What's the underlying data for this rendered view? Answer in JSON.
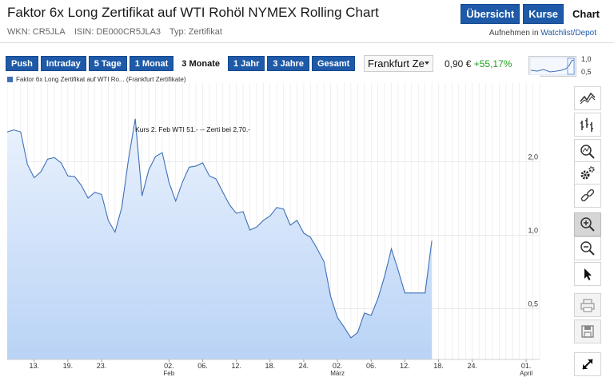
{
  "header": {
    "title": "Faktor 6x Long Zertifikat auf WTI Rohöl NYMEX Rolling Chart",
    "nav": [
      "Übersicht",
      "Kurse",
      "Chart"
    ],
    "active_nav": "Chart",
    "wkn": "WKN: CR5JLA",
    "isin": "ISIN: DE000CR5JLA3",
    "typ": "Typ: Zertifikat",
    "watch_prefix": "Aufnehmen in",
    "watch_link": "Watchlist/Depot"
  },
  "ranges": [
    "Push",
    "Intraday",
    "5 Tage",
    "1 Monat",
    "3 Monate",
    "1 Jahr",
    "3 Jahre",
    "Gesamt"
  ],
  "active_range": "3 Monate",
  "exchange": "Frankfurt Ze",
  "price": {
    "value": "0,90 €",
    "change": "+55,17%"
  },
  "spark": {
    "top_label": "1,0",
    "bottom_label": "0,5"
  },
  "colors": {
    "accent": "#1e5aa8",
    "positive": "#21a021",
    "line": "#3f6fb8",
    "fill_top": "#eaf2fd",
    "fill_bottom": "#b9d3f6"
  },
  "tools": [
    "line-chart-icon",
    "ohlc-icon",
    "zoom-area-icon",
    "settings-icon",
    "link-icon",
    "zoom-in-icon",
    "zoom-out-icon",
    "pointer-icon",
    "print-icon",
    "save-icon",
    "fullscreen-icon"
  ],
  "chart_data": {
    "type": "area",
    "legend": "Faktor 6x Long Zertifikat auf WTI Ro... (Frankfurt Zertifikate)",
    "annotation": "Kurs 2. Feb  WTI 51.-   --  Zerti bei 2,70.-",
    "y_scale": "log",
    "y_ticks": [
      {
        "value": 2.0,
        "label": "2,0"
      },
      {
        "value": 1.0,
        "label": "1,0"
      },
      {
        "value": 0.5,
        "label": "0,5"
      }
    ],
    "y_range": [
      0.31,
      4.2
    ],
    "x_ticks": [
      {
        "i": 4,
        "label": "13."
      },
      {
        "i": 9,
        "label": "19."
      },
      {
        "i": 14,
        "label": "23."
      },
      {
        "i": 24,
        "label": "02.",
        "sub": "Feb"
      },
      {
        "i": 29,
        "label": "06."
      },
      {
        "i": 34,
        "label": "12."
      },
      {
        "i": 39,
        "label": "18."
      },
      {
        "i": 44,
        "label": "24."
      },
      {
        "i": 49,
        "label": "02.",
        "sub": "März"
      },
      {
        "i": 54,
        "label": "06."
      },
      {
        "i": 59,
        "label": "12."
      },
      {
        "i": 64,
        "label": "18."
      },
      {
        "i": 69,
        "label": "24."
      },
      {
        "i": 77,
        "label": "01.",
        "sub": "April"
      }
    ],
    "n_points": 80,
    "series": [
      {
        "points": [
          [
            0,
            2.65
          ],
          [
            1,
            2.7
          ],
          [
            2,
            2.65
          ],
          [
            3,
            1.95
          ],
          [
            4,
            1.72
          ],
          [
            5,
            1.82
          ],
          [
            6,
            2.05
          ],
          [
            7,
            2.08
          ],
          [
            8,
            1.98
          ],
          [
            9,
            1.75
          ],
          [
            10,
            1.74
          ],
          [
            11,
            1.6
          ],
          [
            12,
            1.42
          ],
          [
            13,
            1.5
          ],
          [
            14,
            1.47
          ],
          [
            15,
            1.15
          ],
          [
            16,
            1.03
          ],
          [
            17,
            1.3
          ],
          [
            18,
            2.05
          ],
          [
            19,
            3.0
          ],
          [
            20,
            1.45
          ],
          [
            21,
            1.85
          ],
          [
            22,
            2.1
          ],
          [
            23,
            2.18
          ],
          [
            24,
            1.65
          ],
          [
            25,
            1.38
          ],
          [
            26,
            1.65
          ],
          [
            27,
            1.9
          ],
          [
            28,
            1.92
          ],
          [
            29,
            1.98
          ],
          [
            30,
            1.75
          ],
          [
            31,
            1.7
          ],
          [
            32,
            1.5
          ],
          [
            33,
            1.33
          ],
          [
            34,
            1.23
          ],
          [
            35,
            1.25
          ],
          [
            36,
            1.05
          ],
          [
            37,
            1.08
          ],
          [
            38,
            1.15
          ],
          [
            39,
            1.2
          ],
          [
            40,
            1.3
          ],
          [
            41,
            1.28
          ],
          [
            42,
            1.1
          ],
          [
            43,
            1.15
          ],
          [
            44,
            1.02
          ],
          [
            45,
            0.98
          ],
          [
            46,
            0.88
          ],
          [
            47,
            0.78
          ],
          [
            48,
            0.56
          ],
          [
            49,
            0.46
          ],
          [
            50,
            0.42
          ],
          [
            51,
            0.38
          ],
          [
            52,
            0.4
          ],
          [
            53,
            0.48
          ],
          [
            54,
            0.47
          ],
          [
            55,
            0.55
          ],
          [
            56,
            0.68
          ],
          [
            57,
            0.88
          ],
          [
            58,
            0.72
          ],
          [
            59,
            0.58
          ],
          [
            60,
            0.58
          ],
          [
            61,
            0.58
          ],
          [
            62,
            0.58
          ],
          [
            63,
            0.95
          ]
        ]
      }
    ]
  }
}
